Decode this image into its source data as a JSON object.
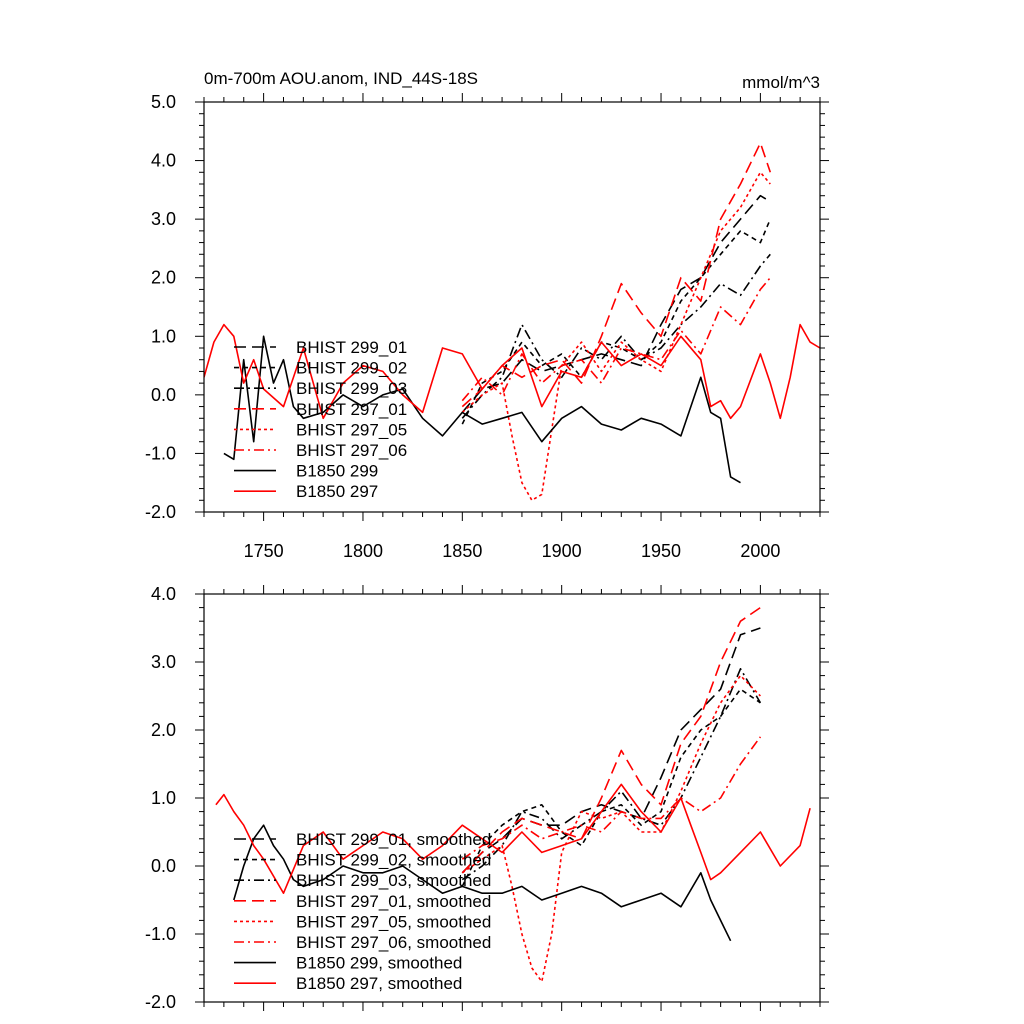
{
  "figure": {
    "title_left": "0m-700m AOU.anom, IND_44S-18S",
    "title_right": "mmol/m^3"
  },
  "colors": {
    "bhist_299": "#000000",
    "bhist_297": "#ff0000",
    "b1850_299": "#000000",
    "b1850_297": "#ff0000"
  },
  "chart_data": [
    {
      "type": "line",
      "title": "0m-700m AOU.anom, IND_44S-18S",
      "units": "mmol/m^3",
      "xlim": [
        1720,
        2030
      ],
      "ylim": [
        -2.0,
        5.0
      ],
      "x_ticks": [
        1750,
        1800,
        1850,
        1900,
        1950,
        2000
      ],
      "x_tick_labels": [
        "1750",
        "1800",
        "1850",
        "1900",
        "1950",
        "2000"
      ],
      "y_ticks": [
        -2,
        -1,
        0,
        1,
        2,
        3,
        4,
        5
      ],
      "y_tick_labels": [
        "-2.0",
        "-1.0",
        "0.0",
        "1.0",
        "2.0",
        "3.0",
        "4.0",
        "5.0"
      ],
      "legend_position": "bottom-left",
      "series": [
        {
          "name": "BHIST 299_01",
          "color": "#000000",
          "dash": "long-dash",
          "x": [
            1850,
            1860,
            1870,
            1880,
            1890,
            1900,
            1910,
            1920,
            1930,
            1940,
            1950,
            1960,
            1970,
            1980,
            1990,
            2000,
            2005
          ],
          "y": [
            -0.3,
            0.1,
            0.2,
            0.6,
            0.4,
            0.5,
            0.6,
            0.7,
            0.6,
            0.5,
            1.2,
            1.8,
            2.0,
            2.6,
            3.0,
            3.4,
            3.3
          ]
        },
        {
          "name": "BHIST 299_02",
          "color": "#000000",
          "dash": "short-dash",
          "x": [
            1850,
            1860,
            1870,
            1880,
            1890,
            1900,
            1910,
            1920,
            1930,
            1940,
            1950,
            1960,
            1970,
            1980,
            1990,
            2000,
            2005
          ],
          "y": [
            -0.5,
            0.2,
            0.4,
            0.9,
            0.5,
            0.7,
            0.3,
            0.9,
            0.8,
            0.6,
            0.9,
            1.6,
            2.0,
            2.4,
            2.8,
            2.6,
            3.0
          ]
        },
        {
          "name": "BHIST 299_03",
          "color": "#000000",
          "dash": "dash-dot",
          "x": [
            1850,
            1860,
            1870,
            1880,
            1890,
            1900,
            1910,
            1920,
            1930,
            1940,
            1950,
            1960,
            1970,
            1980,
            1990,
            2000,
            2005
          ],
          "y": [
            -0.4,
            0.0,
            0.3,
            1.2,
            0.6,
            0.3,
            0.8,
            0.6,
            1.0,
            0.6,
            0.8,
            1.2,
            1.5,
            1.9,
            1.7,
            2.2,
            2.4
          ]
        },
        {
          "name": "BHIST 297_01",
          "color": "#ff0000",
          "dash": "long-dash",
          "x": [
            1850,
            1860,
            1870,
            1880,
            1890,
            1900,
            1910,
            1920,
            1930,
            1940,
            1950,
            1960,
            1970,
            1980,
            1990,
            2000,
            2005
          ],
          "y": [
            -0.2,
            0.1,
            0.5,
            0.3,
            0.5,
            0.6,
            0.2,
            1.0,
            1.9,
            1.4,
            1.0,
            2.0,
            1.6,
            3.0,
            3.6,
            4.3,
            3.8
          ]
        },
        {
          "name": "BHIST 297_05",
          "color": "#ff0000",
          "dash": "dot",
          "x": [
            1850,
            1860,
            1870,
            1875,
            1880,
            1885,
            1890,
            1895,
            1900,
            1910,
            1920,
            1930,
            1940,
            1950,
            1960,
            1970,
            1980,
            1990,
            2000,
            2005
          ],
          "y": [
            -0.3,
            0.0,
            0.2,
            -0.7,
            -1.5,
            -1.8,
            -1.7,
            -0.6,
            0.5,
            0.9,
            0.4,
            0.9,
            0.6,
            0.4,
            1.2,
            2.0,
            2.8,
            3.2,
            3.8,
            3.6
          ]
        },
        {
          "name": "BHIST 297_06",
          "color": "#ff0000",
          "dash": "dash-dot",
          "x": [
            1850,
            1860,
            1870,
            1880,
            1890,
            1900,
            1910,
            1920,
            1930,
            1940,
            1950,
            1960,
            1970,
            1980,
            1990,
            2000,
            2005
          ],
          "y": [
            -0.1,
            0.3,
            0.0,
            0.7,
            0.2,
            0.5,
            0.6,
            0.2,
            0.8,
            0.7,
            0.6,
            1.1,
            0.7,
            1.5,
            1.2,
            1.8,
            2.0
          ]
        },
        {
          "name": "B1850 299",
          "color": "#000000",
          "dash": "solid",
          "x": [
            1730,
            1735,
            1740,
            1745,
            1750,
            1755,
            1760,
            1765,
            1770,
            1780,
            1790,
            1800,
            1810,
            1820,
            1830,
            1840,
            1850,
            1860,
            1870,
            1880,
            1890,
            1900,
            1910,
            1920,
            1930,
            1940,
            1950,
            1960,
            1970,
            1975,
            1980,
            1985,
            1990
          ],
          "y": [
            -1.0,
            -1.1,
            0.6,
            -0.8,
            1.0,
            0.2,
            0.6,
            -0.2,
            -0.4,
            -0.3,
            0.0,
            -0.2,
            0.0,
            0.1,
            -0.4,
            -0.7,
            -0.3,
            -0.5,
            -0.4,
            -0.3,
            -0.8,
            -0.4,
            -0.2,
            -0.5,
            -0.6,
            -0.4,
            -0.5,
            -0.7,
            0.3,
            -0.3,
            -0.4,
            -1.4,
            -1.5
          ]
        },
        {
          "name": "B1850 297",
          "color": "#ff0000",
          "dash": "solid",
          "x": [
            1720,
            1725,
            1730,
            1735,
            1740,
            1745,
            1750,
            1760,
            1770,
            1780,
            1790,
            1800,
            1810,
            1820,
            1830,
            1840,
            1850,
            1860,
            1870,
            1880,
            1890,
            1900,
            1910,
            1920,
            1930,
            1940,
            1950,
            1960,
            1970,
            1975,
            1980,
            1985,
            1990,
            2000,
            2005,
            2010,
            2015,
            2020,
            2025,
            2030
          ],
          "y": [
            0.3,
            0.9,
            1.2,
            1.0,
            0.2,
            0.6,
            0.1,
            -0.2,
            0.8,
            -0.4,
            0.2,
            0.5,
            0.4,
            0.0,
            -0.3,
            0.8,
            0.7,
            0.1,
            0.5,
            0.8,
            -0.2,
            0.4,
            0.3,
            0.9,
            0.5,
            0.7,
            0.5,
            1.0,
            0.6,
            -0.2,
            -0.1,
            -0.4,
            -0.2,
            0.7,
            0.2,
            -0.4,
            0.3,
            1.2,
            0.9,
            0.8
          ]
        }
      ]
    },
    {
      "type": "line",
      "xlim": [
        1720,
        2030
      ],
      "ylim": [
        -2.0,
        4.0
      ],
      "x_ticks": [
        1750,
        1800,
        1850,
        1900,
        1950,
        2000
      ],
      "y_ticks": [
        -2,
        -1,
        0,
        1,
        2,
        3,
        4
      ],
      "y_tick_labels": [
        "-2.0",
        "-1.0",
        "0.0",
        "1.0",
        "2.0",
        "3.0",
        "4.0"
      ],
      "legend_position": "bottom-left",
      "series": [
        {
          "name": "BHIST 299_01, smoothed",
          "color": "#000000",
          "dash": "long-dash",
          "x": [
            1850,
            1860,
            1870,
            1880,
            1890,
            1900,
            1910,
            1920,
            1930,
            1940,
            1950,
            1960,
            1970,
            1980,
            1990,
            2000
          ],
          "y": [
            -0.1,
            0.2,
            0.4,
            0.7,
            0.6,
            0.6,
            0.8,
            0.9,
            0.8,
            0.7,
            1.3,
            2.0,
            2.3,
            2.6,
            3.4,
            3.5
          ]
        },
        {
          "name": "BHIST 299_02, smoothed",
          "color": "#000000",
          "dash": "short-dash",
          "x": [
            1850,
            1860,
            1870,
            1880,
            1890,
            1900,
            1910,
            1920,
            1930,
            1940,
            1950,
            1960,
            1970,
            1980,
            1990,
            2000
          ],
          "y": [
            -0.3,
            0.3,
            0.6,
            0.8,
            0.9,
            0.5,
            0.3,
            0.8,
            0.9,
            0.6,
            0.8,
            1.6,
            2.0,
            2.2,
            2.6,
            2.4
          ]
        },
        {
          "name": "BHIST 299_03, smoothed",
          "color": "#000000",
          "dash": "dash-dot",
          "x": [
            1850,
            1860,
            1870,
            1880,
            1890,
            1900,
            1910,
            1920,
            1930,
            1940,
            1950,
            1960,
            1970,
            1980,
            1990,
            2000
          ],
          "y": [
            -0.2,
            0.0,
            0.3,
            0.8,
            0.7,
            0.4,
            0.6,
            0.8,
            1.1,
            0.7,
            0.6,
            1.0,
            1.6,
            2.2,
            2.9,
            2.4
          ]
        },
        {
          "name": "BHIST 297_01, smoothed",
          "color": "#ff0000",
          "dash": "long-dash",
          "x": [
            1850,
            1860,
            1870,
            1880,
            1890,
            1900,
            1910,
            1920,
            1930,
            1940,
            1950,
            1960,
            1970,
            1980,
            1990,
            2000
          ],
          "y": [
            -0.1,
            0.2,
            0.5,
            0.7,
            0.6,
            0.5,
            0.4,
            1.0,
            1.7,
            1.2,
            0.9,
            1.8,
            2.2,
            3.0,
            3.6,
            3.8
          ]
        },
        {
          "name": "BHIST 297_05, smoothed",
          "color": "#ff0000",
          "dash": "dot",
          "x": [
            1850,
            1860,
            1870,
            1875,
            1880,
            1885,
            1890,
            1895,
            1900,
            1910,
            1920,
            1930,
            1940,
            1950,
            1960,
            1970,
            1980,
            1990,
            2000
          ],
          "y": [
            -0.1,
            0.1,
            0.3,
            -0.3,
            -1.0,
            -1.5,
            -1.7,
            -1.0,
            0.2,
            0.8,
            0.7,
            0.8,
            0.5,
            0.5,
            1.1,
            1.8,
            2.4,
            2.8,
            2.5
          ]
        },
        {
          "name": "BHIST 297_06, smoothed",
          "color": "#ff0000",
          "dash": "dash-dot",
          "x": [
            1850,
            1860,
            1870,
            1880,
            1890,
            1900,
            1910,
            1920,
            1930,
            1940,
            1950,
            1960,
            1970,
            1980,
            1990,
            2000
          ],
          "y": [
            0.1,
            0.3,
            0.4,
            0.6,
            0.4,
            0.5,
            0.6,
            0.5,
            0.8,
            0.7,
            0.7,
            1.0,
            0.8,
            1.0,
            1.5,
            1.9
          ]
        },
        {
          "name": "B1850 299, smoothed",
          "color": "#000000",
          "dash": "solid",
          "x": [
            1735,
            1740,
            1745,
            1750,
            1755,
            1760,
            1765,
            1770,
            1780,
            1790,
            1800,
            1810,
            1820,
            1830,
            1840,
            1850,
            1860,
            1870,
            1880,
            1890,
            1900,
            1910,
            1920,
            1930,
            1940,
            1950,
            1960,
            1970,
            1975,
            1980,
            1985
          ],
          "y": [
            -0.5,
            0.0,
            0.4,
            0.6,
            0.3,
            0.1,
            -0.2,
            -0.3,
            -0.2,
            0.0,
            -0.1,
            -0.1,
            0.0,
            -0.2,
            -0.4,
            -0.3,
            -0.4,
            -0.4,
            -0.3,
            -0.5,
            -0.4,
            -0.3,
            -0.4,
            -0.6,
            -0.5,
            -0.4,
            -0.6,
            -0.1,
            -0.5,
            -0.8,
            -1.1
          ]
        },
        {
          "name": "B1850 297, smoothed",
          "color": "#ff0000",
          "dash": "solid",
          "x": [
            1726,
            1730,
            1735,
            1740,
            1745,
            1750,
            1760,
            1770,
            1780,
            1790,
            1800,
            1810,
            1820,
            1830,
            1840,
            1850,
            1860,
            1870,
            1880,
            1890,
            1900,
            1910,
            1920,
            1930,
            1940,
            1950,
            1960,
            1965,
            1970,
            1975,
            1980,
            1990,
            2000,
            2010,
            2020,
            2025
          ],
          "y": [
            0.9,
            1.05,
            0.8,
            0.6,
            0.3,
            0.1,
            -0.4,
            0.3,
            0.5,
            0.1,
            0.3,
            0.5,
            0.4,
            0.1,
            0.3,
            0.6,
            0.4,
            0.2,
            0.5,
            0.2,
            0.3,
            0.4,
            0.8,
            1.2,
            0.8,
            0.5,
            1.0,
            0.6,
            0.2,
            -0.2,
            -0.1,
            0.2,
            0.5,
            0.0,
            0.3,
            0.85
          ]
        }
      ]
    }
  ]
}
